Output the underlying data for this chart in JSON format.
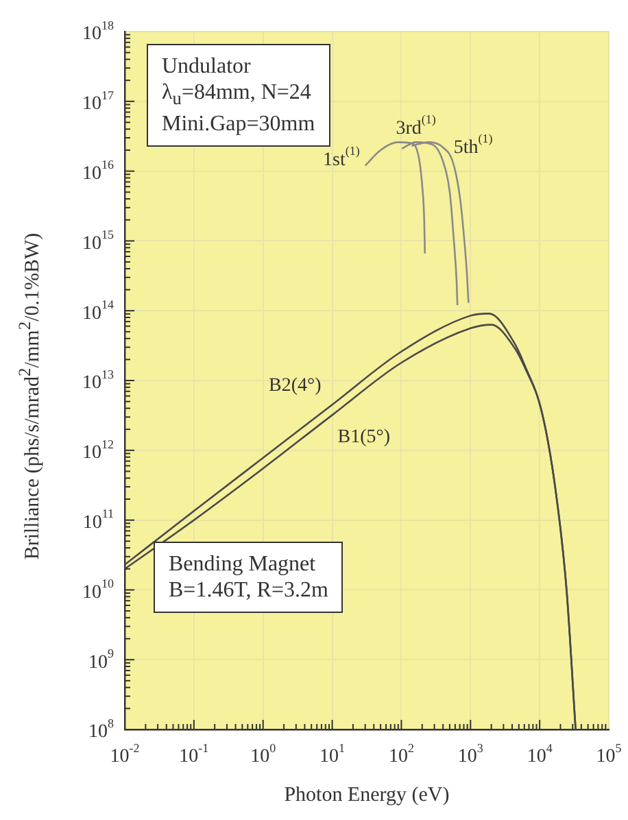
{
  "chart_data": {
    "type": "line",
    "xlabel": "Photon Energy (eV)",
    "ylabel": "Brilliance (phs/s/mrad$^{2}$/mm$^{2}$/0.1%BW)",
    "log": "xy",
    "grid": true,
    "legend": false,
    "marker": "none",
    "line_style": "solid",
    "xlim": [
      0.01,
      100000
    ],
    "ylim": [
      100000000.0,
      1e+18
    ],
    "xticks": [
      {
        "value": 0.01,
        "label": "10$^{-2}$"
      },
      {
        "value": 0.1,
        "label": "10$^{-1}$"
      },
      {
        "value": 1,
        "label": "10$^{0}$"
      },
      {
        "value": 10,
        "label": "10$^{1}$"
      },
      {
        "value": 100,
        "label": "10$^{2}$"
      },
      {
        "value": 1000,
        "label": "10$^{3}$"
      },
      {
        "value": 10000,
        "label": "10$^{4}$"
      },
      {
        "value": 100000,
        "label": "10$^{5}$"
      }
    ],
    "yticks": [
      {
        "value": 100000000.0,
        "label": "10$^{8}$"
      },
      {
        "value": 1000000000.0,
        "label": "10$^{9}$"
      },
      {
        "value": 10000000000.0,
        "label": "10$^{10}$"
      },
      {
        "value": 100000000000.0,
        "label": "10$^{11}$"
      },
      {
        "value": 1000000000000.0,
        "label": "10$^{12}$"
      },
      {
        "value": 10000000000000.0,
        "label": "10$^{13}$"
      },
      {
        "value": 100000000000000.0,
        "label": "10$^{14}$"
      },
      {
        "value": 1000000000000000.0,
        "label": "10$^{15}$"
      },
      {
        "value": 1e+16,
        "label": "10$^{16}$"
      },
      {
        "value": 1e+17,
        "label": "10$^{17}$"
      },
      {
        "value": 1e+18,
        "label": "10$^{18}$"
      }
    ],
    "series": [
      {
        "name": "1st$^{(1)}$",
        "color": "#8a8a8a",
        "x": [
          30,
          50,
          89,
          141,
          178,
          200,
          214,
          219
        ],
        "values": [
          1.2e+16,
          2e+16,
          2.6e+16,
          2.5e+16,
          1.6e+16,
          6300000000000000.0,
          2000000000000000.0,
          660000000000000.0
        ]
      },
      {
        "name": "3rd$^{(1)}$",
        "color": "#8a8a8a",
        "x": [
          102,
          162,
          282,
          398,
          501,
          575,
          631,
          646
        ],
        "values": [
          2.1e+16,
          2.6e+16,
          2.4e+16,
          1.4e+16,
          5000000000000000.0,
          1000000000000000.0,
          250000000000000.0,
          120000000000000.0
        ]
      },
      {
        "name": "5th$^{(1)}$",
        "color": "#8a8a8a",
        "x": [
          141,
          251,
          398,
          562,
          708,
          832,
          891,
          933
        ],
        "values": [
          2.3e+16,
          2.6e+16,
          2.2e+16,
          1.3e+16,
          4000000000000000.0,
          790000000000000.0,
          320000000000000.0,
          130000000000000.0
        ]
      },
      {
        "name": "B2(4°)",
        "color": "#4a4a4a",
        "x": [
          0.01,
          0.1,
          1,
          10,
          100,
          1000,
          1860,
          4270,
          6170,
          10700,
          16900,
          24500,
          33100
        ],
        "values": [
          23000000000.0,
          135000000000.0,
          780000000000.0,
          4500000000000.0,
          26000000000000.0,
          85000000000000.0,
          91000000000000.0,
          35000000000000.0,
          16000000000000.0,
          3600000000000.0,
          280000000000.0,
          10000000000.0,
          100000000.0
        ]
      },
      {
        "name": "B1(5°)",
        "color": "#4a4a4a",
        "x": [
          0.01,
          0.1,
          1,
          10,
          100,
          1000,
          2000,
          4270,
          6170,
          10700,
          16900,
          24500,
          33100
        ],
        "values": [
          20000000000.0,
          100000000000.0,
          550000000000.0,
          3200000000000.0,
          18000000000000.0,
          56000000000000.0,
          63000000000000.0,
          30000000000000.0,
          15000000000000.0,
          3600000000000.0,
          280000000000.0,
          10000000000.0,
          100000000.0
        ]
      }
    ],
    "annotations": [
      "Undulator\nλ$_{u}$=84mm, N=24\nMini.Gap=30mm",
      "Bending Magnet\nB=1.46T, R=3.2m"
    ]
  }
}
